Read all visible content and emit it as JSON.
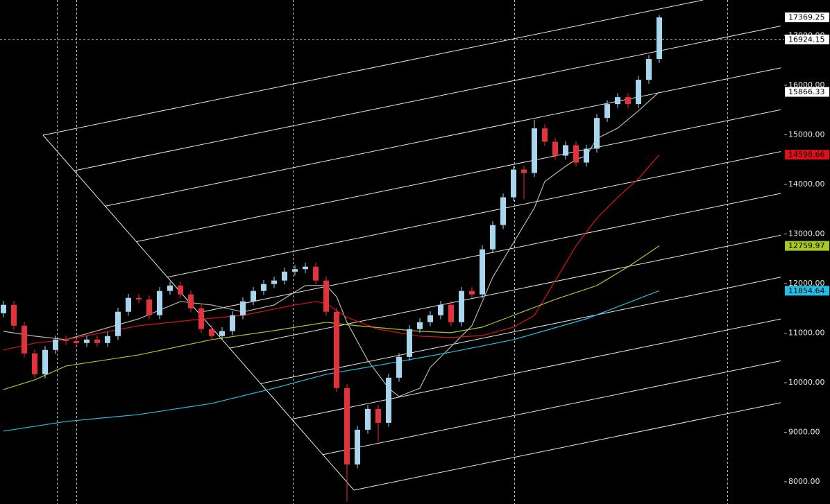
{
  "chart_data": {
    "type": "candlestick",
    "ylim": [
      7552,
      17720
    ],
    "yticks": [
      {
        "value": 8000,
        "label": "8000.00"
      },
      {
        "value": 9000,
        "label": "9000.00"
      },
      {
        "value": 10000,
        "label": "10000.00"
      },
      {
        "value": 11000,
        "label": "11000.00"
      },
      {
        "value": 12000,
        "label": "12000.00"
      },
      {
        "value": 13000,
        "label": "13000.00"
      },
      {
        "value": 14000,
        "label": "14000.00"
      },
      {
        "value": 15000,
        "label": "15000.00"
      },
      {
        "value": 16000,
        "label": "16000.00"
      },
      {
        "value": 17000,
        "label": "17000.00"
      }
    ],
    "up_color": "#a9d6ef",
    "down_color": "#e2323c",
    "candles": {
      "open": [
        11400,
        11570,
        11150,
        10590,
        10170,
        10660,
        10870,
        10840,
        10800,
        10870,
        10800,
        10940,
        11430,
        11710,
        11680,
        11360,
        11850,
        11960,
        11780,
        11500,
        11080,
        10940,
        11040,
        11360,
        11640,
        11850,
        11990,
        12060,
        12240,
        12290,
        12340,
        12060,
        11430,
        9890,
        8350,
        9050,
        9470,
        9190,
        10100,
        10520,
        11080,
        11220,
        11360,
        11570,
        11220,
        11850,
        11780,
        12690,
        13180,
        13740,
        14300,
        14230,
        15130,
        14860,
        14580,
        14790,
        14440,
        14720,
        15340,
        15620,
        15760,
        15620,
        16110,
        16530
      ],
      "high": [
        11650,
        11650,
        11230,
        10670,
        10740,
        10950,
        10950,
        10920,
        10950,
        10950,
        11020,
        11510,
        11790,
        11790,
        11760,
        11930,
        12040,
        12040,
        11860,
        11580,
        11160,
        11120,
        11440,
        11720,
        11930,
        12070,
        12140,
        12320,
        12370,
        12420,
        12420,
        12140,
        11510,
        9970,
        9130,
        9550,
        9550,
        10180,
        10600,
        11160,
        11300,
        11440,
        11650,
        11650,
        11930,
        11930,
        12770,
        13260,
        13820,
        14380,
        14380,
        15300,
        15210,
        14940,
        14870,
        14870,
        14800,
        15420,
        15700,
        15840,
        15840,
        16190,
        16610,
        17420
      ],
      "low": [
        11320,
        11070,
        10510,
        10090,
        10090,
        10580,
        10760,
        10720,
        10720,
        10720,
        10720,
        10860,
        11350,
        11600,
        11280,
        11280,
        11770,
        11700,
        11420,
        11000,
        10860,
        10860,
        10960,
        11280,
        11560,
        11770,
        11910,
        11980,
        12160,
        12210,
        11980,
        11350,
        9810,
        7600,
        8270,
        8970,
        8800,
        9110,
        10020,
        10440,
        11000,
        11140,
        11280,
        11140,
        11140,
        11700,
        11700,
        12610,
        13100,
        13660,
        13700,
        14150,
        14780,
        14500,
        14500,
        14360,
        14360,
        14640,
        15260,
        15540,
        15540,
        15540,
        16030,
        16450
      ],
      "close": [
        11570,
        11150,
        10590,
        10170,
        10660,
        10870,
        10840,
        10800,
        10870,
        10800,
        10940,
        11430,
        11710,
        11680,
        11360,
        11850,
        11960,
        11780,
        11500,
        11080,
        10940,
        11040,
        11360,
        11640,
        11850,
        11990,
        12060,
        12240,
        12290,
        12340,
        12060,
        11430,
        9890,
        8350,
        9050,
        9470,
        9190,
        10100,
        10520,
        11080,
        11220,
        11360,
        11570,
        11220,
        11850,
        11780,
        12690,
        13180,
        13740,
        14300,
        14230,
        15130,
        14860,
        14580,
        14790,
        14440,
        14720,
        15340,
        15620,
        15760,
        15620,
        16110,
        16530,
        17369.25
      ]
    },
    "lines": [
      {
        "color": "#b8b8b0",
        "x": [
          0,
          3,
          6,
          13,
          17,
          20,
          23,
          26,
          29,
          31,
          32,
          33,
          35,
          37,
          38,
          40,
          41,
          43,
          45,
          46,
          47,
          49,
          51,
          52,
          54,
          55,
          56,
          57,
          59,
          61,
          63
        ],
        "values": [
          11036,
          10938,
          10868,
          11288,
          11637,
          11567,
          11427,
          11567,
          11959,
          11959,
          11735,
          11218,
          10448,
          9889,
          9721,
          9889,
          10308,
          10728,
          11148,
          11637,
          12127,
          12827,
          13526,
          14058,
          14365,
          14505,
          14575,
          14925,
          15135,
          15485,
          15866.33
        ]
      },
      {
        "color": "#e0101a",
        "x": [
          0,
          3,
          6,
          13,
          18,
          23,
          28,
          30,
          31,
          33,
          36,
          40,
          43,
          46,
          49,
          51,
          53,
          55,
          57,
          59,
          61,
          63
        ],
        "values": [
          10658,
          10798,
          10868,
          11148,
          11260,
          11358,
          11567,
          11637,
          11595,
          11316,
          11078,
          10938,
          10910,
          10952,
          11120,
          11358,
          12057,
          12757,
          13316,
          13736,
          14114,
          14598.66
        ]
      },
      {
        "color": "#a8c820",
        "x": [
          0,
          3,
          6,
          13,
          20,
          26,
          31,
          34,
          40,
          43,
          46,
          49,
          53,
          57,
          60,
          63
        ],
        "values": [
          9861,
          10057,
          10336,
          10560,
          10868,
          11050,
          11218,
          11148,
          11036,
          11008,
          11120,
          11358,
          11679,
          11959,
          12337,
          12759.97
        ]
      },
      {
        "color": "#22c0e8",
        "x": [
          0,
          6,
          13,
          20,
          26,
          31,
          36,
          43,
          49,
          56,
          63
        ],
        "values": [
          9021,
          9217,
          9357,
          9581,
          9889,
          10168,
          10350,
          10616,
          10868,
          11288,
          11854.64
        ]
      }
    ],
    "crosshair": 16924.15
  }
}
